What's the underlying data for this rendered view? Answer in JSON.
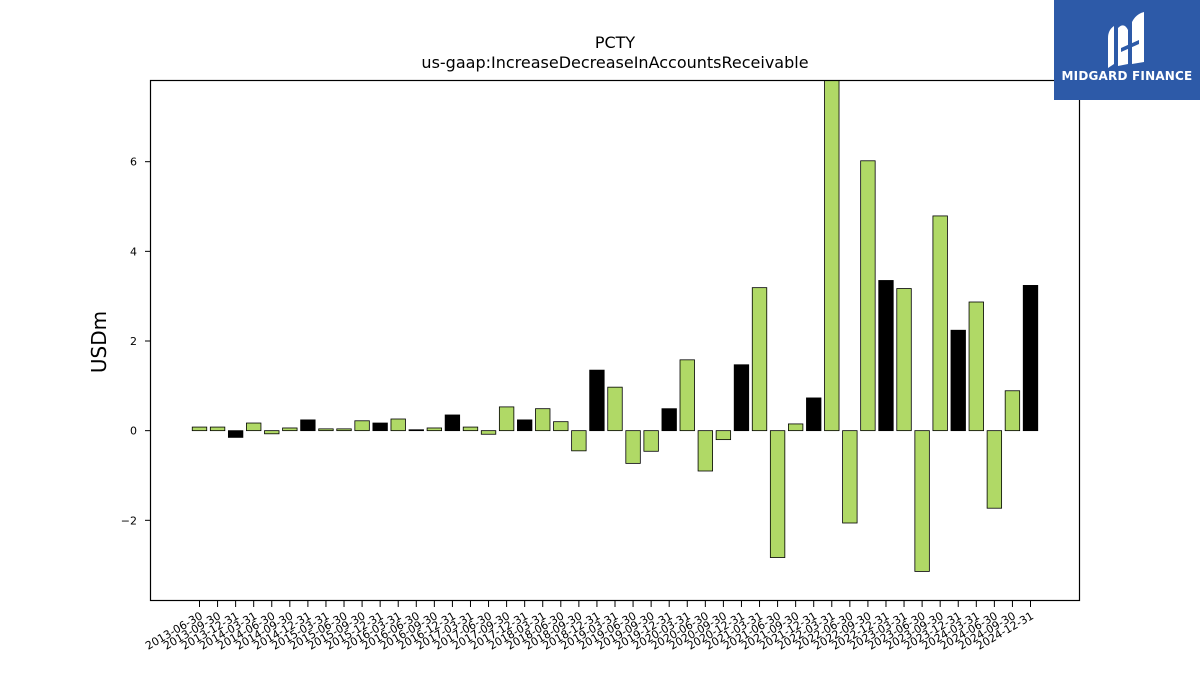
{
  "chart_data": {
    "type": "bar",
    "title": "PCTY",
    "subtitle": "us-gaap:IncreaseDecreaseInAccountsReceivable",
    "xlabel": "",
    "ylabel": "USDm",
    "ylim": [
      -3.8,
      7.8
    ],
    "yticks": [
      -2,
      0,
      2,
      4,
      6
    ],
    "ytick_labels": [
      "−2",
      "0",
      "2",
      "4",
      "6"
    ],
    "colors": {
      "quarter": "#b0d966",
      "annual": "#000000"
    },
    "categories": [
      "2013-06-30",
      "2013-09-30",
      "2013-12-31",
      "2014-03-31",
      "2014-06-30",
      "2014-09-30",
      "2014-12-31",
      "2015-03-31",
      "2015-06-30",
      "2015-09-30",
      "2015-12-31",
      "2016-03-31",
      "2016-06-30",
      "2016-09-30",
      "2016-12-31",
      "2017-03-31",
      "2017-06-30",
      "2017-09-30",
      "2017-12-31",
      "2018-03-31",
      "2018-06-30",
      "2018-09-30",
      "2018-12-31",
      "2019-03-31",
      "2019-06-30",
      "2019-09-30",
      "2019-12-31",
      "2020-03-31",
      "2020-06-30",
      "2020-09-30",
      "2020-12-31",
      "2021-03-31",
      "2021-06-30",
      "2021-09-30",
      "2021-12-31",
      "2022-03-31",
      "2022-06-30",
      "2022-09-30",
      "2022-12-31",
      "2023-03-31",
      "2023-06-30",
      "2023-09-30",
      "2023-12-31",
      "2024-03-31",
      "2024-06-30",
      "2024-09-30",
      "2024-12-31"
    ],
    "values": [
      0.08,
      0.08,
      -0.15,
      0.17,
      -0.07,
      0.06,
      0.24,
      0.04,
      0.04,
      0.22,
      0.17,
      0.26,
      0.02,
      0.06,
      0.35,
      0.08,
      -0.08,
      0.53,
      0.24,
      0.49,
      0.2,
      -0.45,
      1.35,
      0.97,
      -0.73,
      -0.46,
      0.49,
      1.58,
      -0.9,
      -0.2,
      1.47,
      3.19,
      -2.83,
      0.15,
      0.73,
      7.9,
      -2.06,
      6.02,
      3.35,
      3.17,
      -3.14,
      4.79,
      2.24,
      2.87,
      -1.73,
      0.89,
      3.24
    ],
    "bar_kind": [
      "q",
      "q",
      "a",
      "q",
      "q",
      "q",
      "a",
      "q",
      "q",
      "q",
      "a",
      "q",
      "a",
      "q",
      "a",
      "q",
      "q",
      "q",
      "a",
      "q",
      "q",
      "q",
      "a",
      "q",
      "q",
      "q",
      "a",
      "q",
      "q",
      "q",
      "a",
      "q",
      "q",
      "q",
      "a",
      "q",
      "q",
      "q",
      "a",
      "q",
      "q",
      "q",
      "a",
      "q",
      "q",
      "q",
      "a"
    ]
  },
  "logo": {
    "text": "MIDGARD FINANCE",
    "background": "#2d5aa8"
  }
}
